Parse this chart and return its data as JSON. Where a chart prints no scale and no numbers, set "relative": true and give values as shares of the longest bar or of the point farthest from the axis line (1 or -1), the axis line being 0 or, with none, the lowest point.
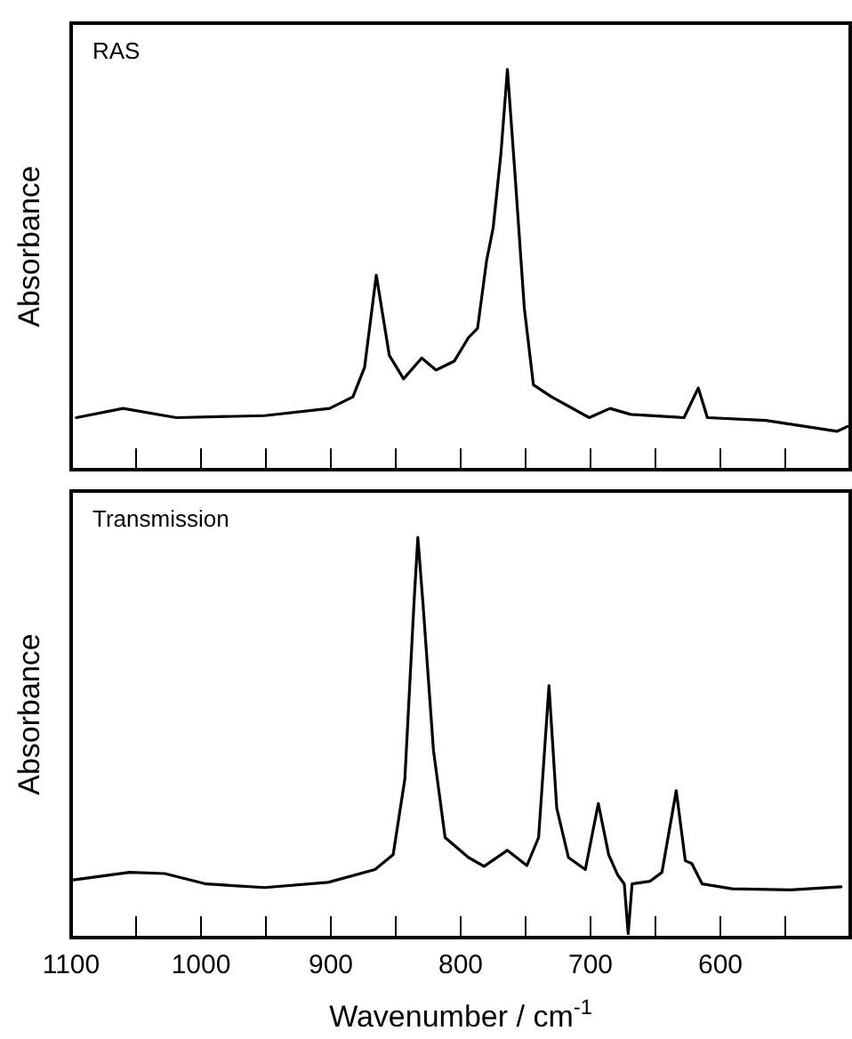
{
  "chart_data": [
    {
      "type": "line",
      "title": "RAS",
      "ylabel": "Absorbance",
      "relative": true,
      "tick_labels": false,
      "xlim": [
        1100,
        500
      ],
      "xticks": [
        1100,
        {
          "value": 1050,
          "label": null
        },
        1000,
        {
          "value": 950,
          "label": null
        },
        900,
        {
          "value": 850,
          "label": null
        },
        800,
        {
          "value": 750,
          "label": null
        },
        700,
        {
          "value": 650,
          "label": null
        },
        600,
        {
          "value": 550,
          "label": null
        }
      ],
      "series": [
        {
          "color": "#000000",
          "x": [
            1096,
            1060,
            1019,
            951,
            901,
            883,
            874,
            865,
            855,
            844,
            830,
            819,
            805,
            794,
            787,
            780,
            775,
            769,
            764,
            758,
            751,
            744,
            730,
            701,
            685,
            669,
            628,
            617,
            610,
            565,
            510,
            502
          ],
          "values": [
            0.13,
            0.153,
            0.13,
            0.135,
            0.153,
            0.182,
            0.256,
            0.486,
            0.286,
            0.227,
            0.279,
            0.249,
            0.271,
            0.33,
            0.353,
            0.523,
            0.604,
            0.79,
            1.0,
            0.73,
            0.404,
            0.212,
            0.182,
            0.13,
            0.153,
            0.138,
            0.13,
            0.204,
            0.13,
            0.123,
            0.096,
            0.108
          ]
        }
      ]
    },
    {
      "type": "line",
      "title": "Transmission",
      "ylabel": "Absorbance",
      "xlabel": "Wavenumber / cm$^{-1}$",
      "relative": true,
      "tick_labels": "x",
      "xlim": [
        1100,
        500
      ],
      "xticks": [
        1100,
        {
          "value": 1050,
          "label": null
        },
        1000,
        {
          "value": 950,
          "label": null
        },
        900,
        {
          "value": 850,
          "label": null
        },
        800,
        {
          "value": 750,
          "label": null
        },
        700,
        {
          "value": 650,
          "label": null
        },
        600,
        {
          "value": 550,
          "label": null
        }
      ],
      "series": [
        {
          "color": "#000000",
          "x": [
            1098,
            1055,
            1028,
            996,
            951,
            902,
            866,
            852,
            843,
            836,
            833,
            829,
            821,
            812,
            794,
            782,
            764,
            749,
            740,
            732,
            726,
            717,
            704,
            694,
            686,
            679,
            674,
            671,
            668,
            654,
            645,
            634,
            627,
            622,
            614,
            591,
            546,
            507
          ],
          "values": [
            0.144,
            0.163,
            0.16,
            0.134,
            0.125,
            0.138,
            0.17,
            0.207,
            0.396,
            0.833,
            1.0,
            0.833,
            0.469,
            0.25,
            0.2,
            0.178,
            0.218,
            0.18,
            0.25,
            0.629,
            0.323,
            0.2,
            0.17,
            0.335,
            0.207,
            0.156,
            0.134,
            0.01,
            0.134,
            0.141,
            0.163,
            0.367,
            0.192,
            0.185,
            0.134,
            0.122,
            0.119,
            0.127
          ]
        }
      ]
    }
  ]
}
